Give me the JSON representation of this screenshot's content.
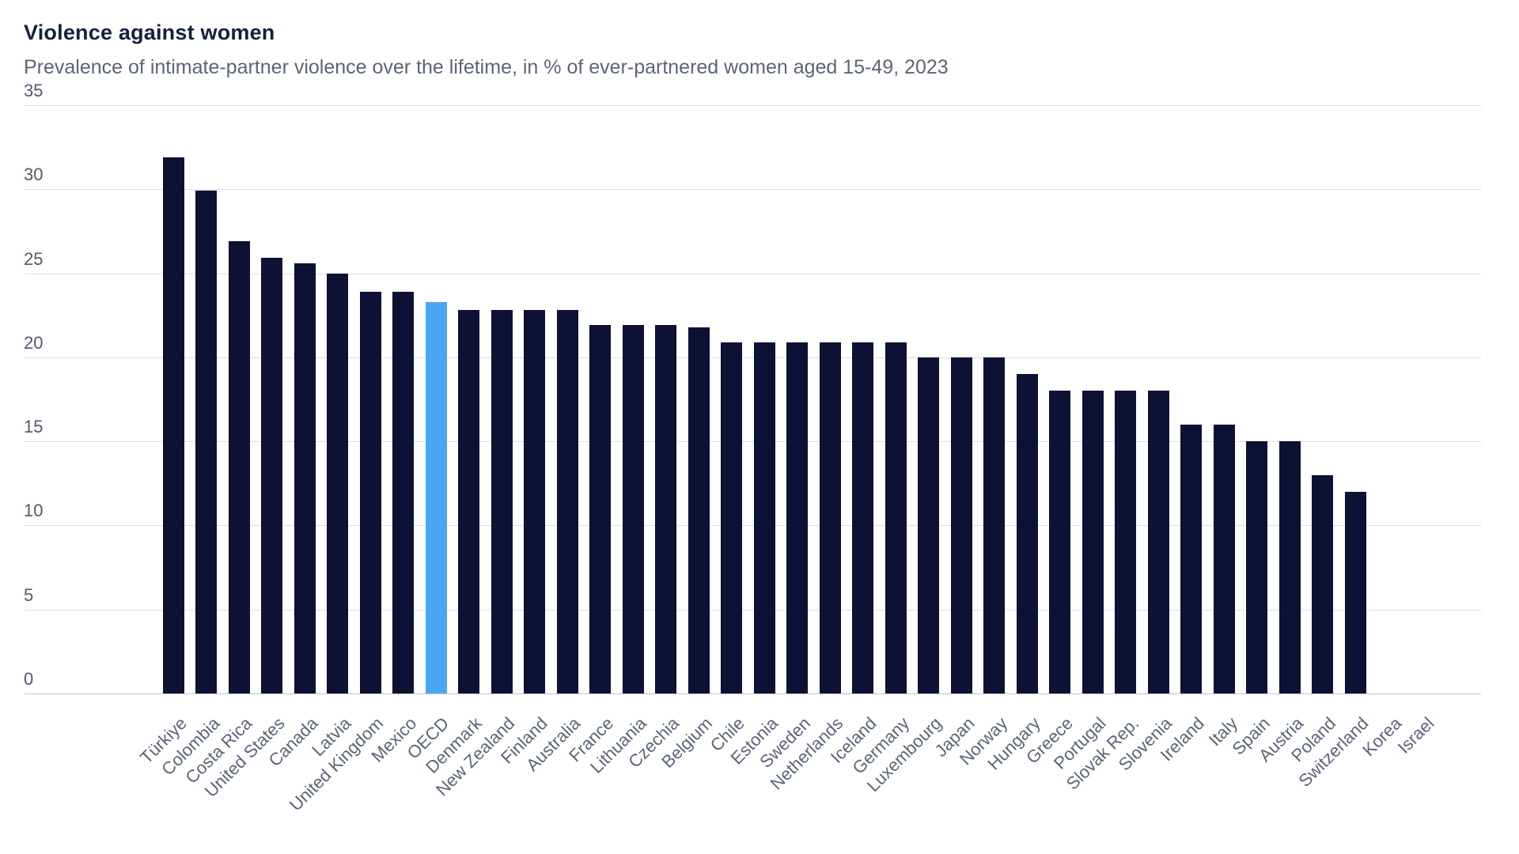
{
  "title": "Violence against women",
  "subtitle": "Prevalence of intimate-partner violence over the lifetime, in % of ever-partnered women aged 15-49, 2023",
  "chart_data": {
    "type": "bar",
    "title": "Violence against women",
    "subtitle": "Prevalence of intimate-partner violence over the lifetime, in % of ever-partnered women aged 15-49, 2023",
    "xlabel": "",
    "ylabel": "",
    "ylim": [
      0,
      35
    ],
    "yticks": [
      0,
      5,
      10,
      15,
      20,
      25,
      30,
      35
    ],
    "grid": true,
    "legend": "none",
    "highlight_category": "OECD",
    "categories": [
      "Türkiye",
      "Colombia",
      "Costa Rica",
      "United States",
      "Canada",
      "Latvia",
      "United Kingdom",
      "Mexico",
      "OECD",
      "Denmark",
      "New Zealand",
      "Finland",
      "Australia",
      "France",
      "Lithuania",
      "Czechia",
      "Belgium",
      "Chile",
      "Estonia",
      "Sweden",
      "Netherlands",
      "Iceland",
      "Germany",
      "Luxembourg",
      "Japan",
      "Norway",
      "Hungary",
      "Greece",
      "Portugal",
      "Slovak Rep.",
      "Slovenia",
      "Ireland",
      "Italy",
      "Spain",
      "Austria",
      "Poland",
      "Switzerland",
      "Korea",
      "Israel"
    ],
    "values": [
      31.9,
      29.9,
      26.9,
      25.9,
      25.6,
      25.0,
      23.9,
      23.9,
      23.3,
      22.8,
      22.8,
      22.8,
      22.8,
      21.9,
      21.9,
      21.9,
      21.8,
      20.9,
      20.9,
      20.9,
      20.9,
      20.9,
      20.9,
      20.0,
      20.0,
      20.0,
      19.0,
      18.0,
      18.0,
      18.0,
      18.0,
      16.0,
      16.0,
      15.0,
      15.0,
      13.0,
      12.0,
      null,
      null
    ]
  },
  "colors": {
    "bar": "#0d1134",
    "highlight": "#4aa5f3",
    "gridline": "#dcdee6",
    "baseline": "#bfc3cd",
    "title": "#14203c",
    "subtitle": "#5c6576",
    "ytick_label": "#4f596c",
    "xtick_label": "#5b6478",
    "background": "#ffffff"
  }
}
